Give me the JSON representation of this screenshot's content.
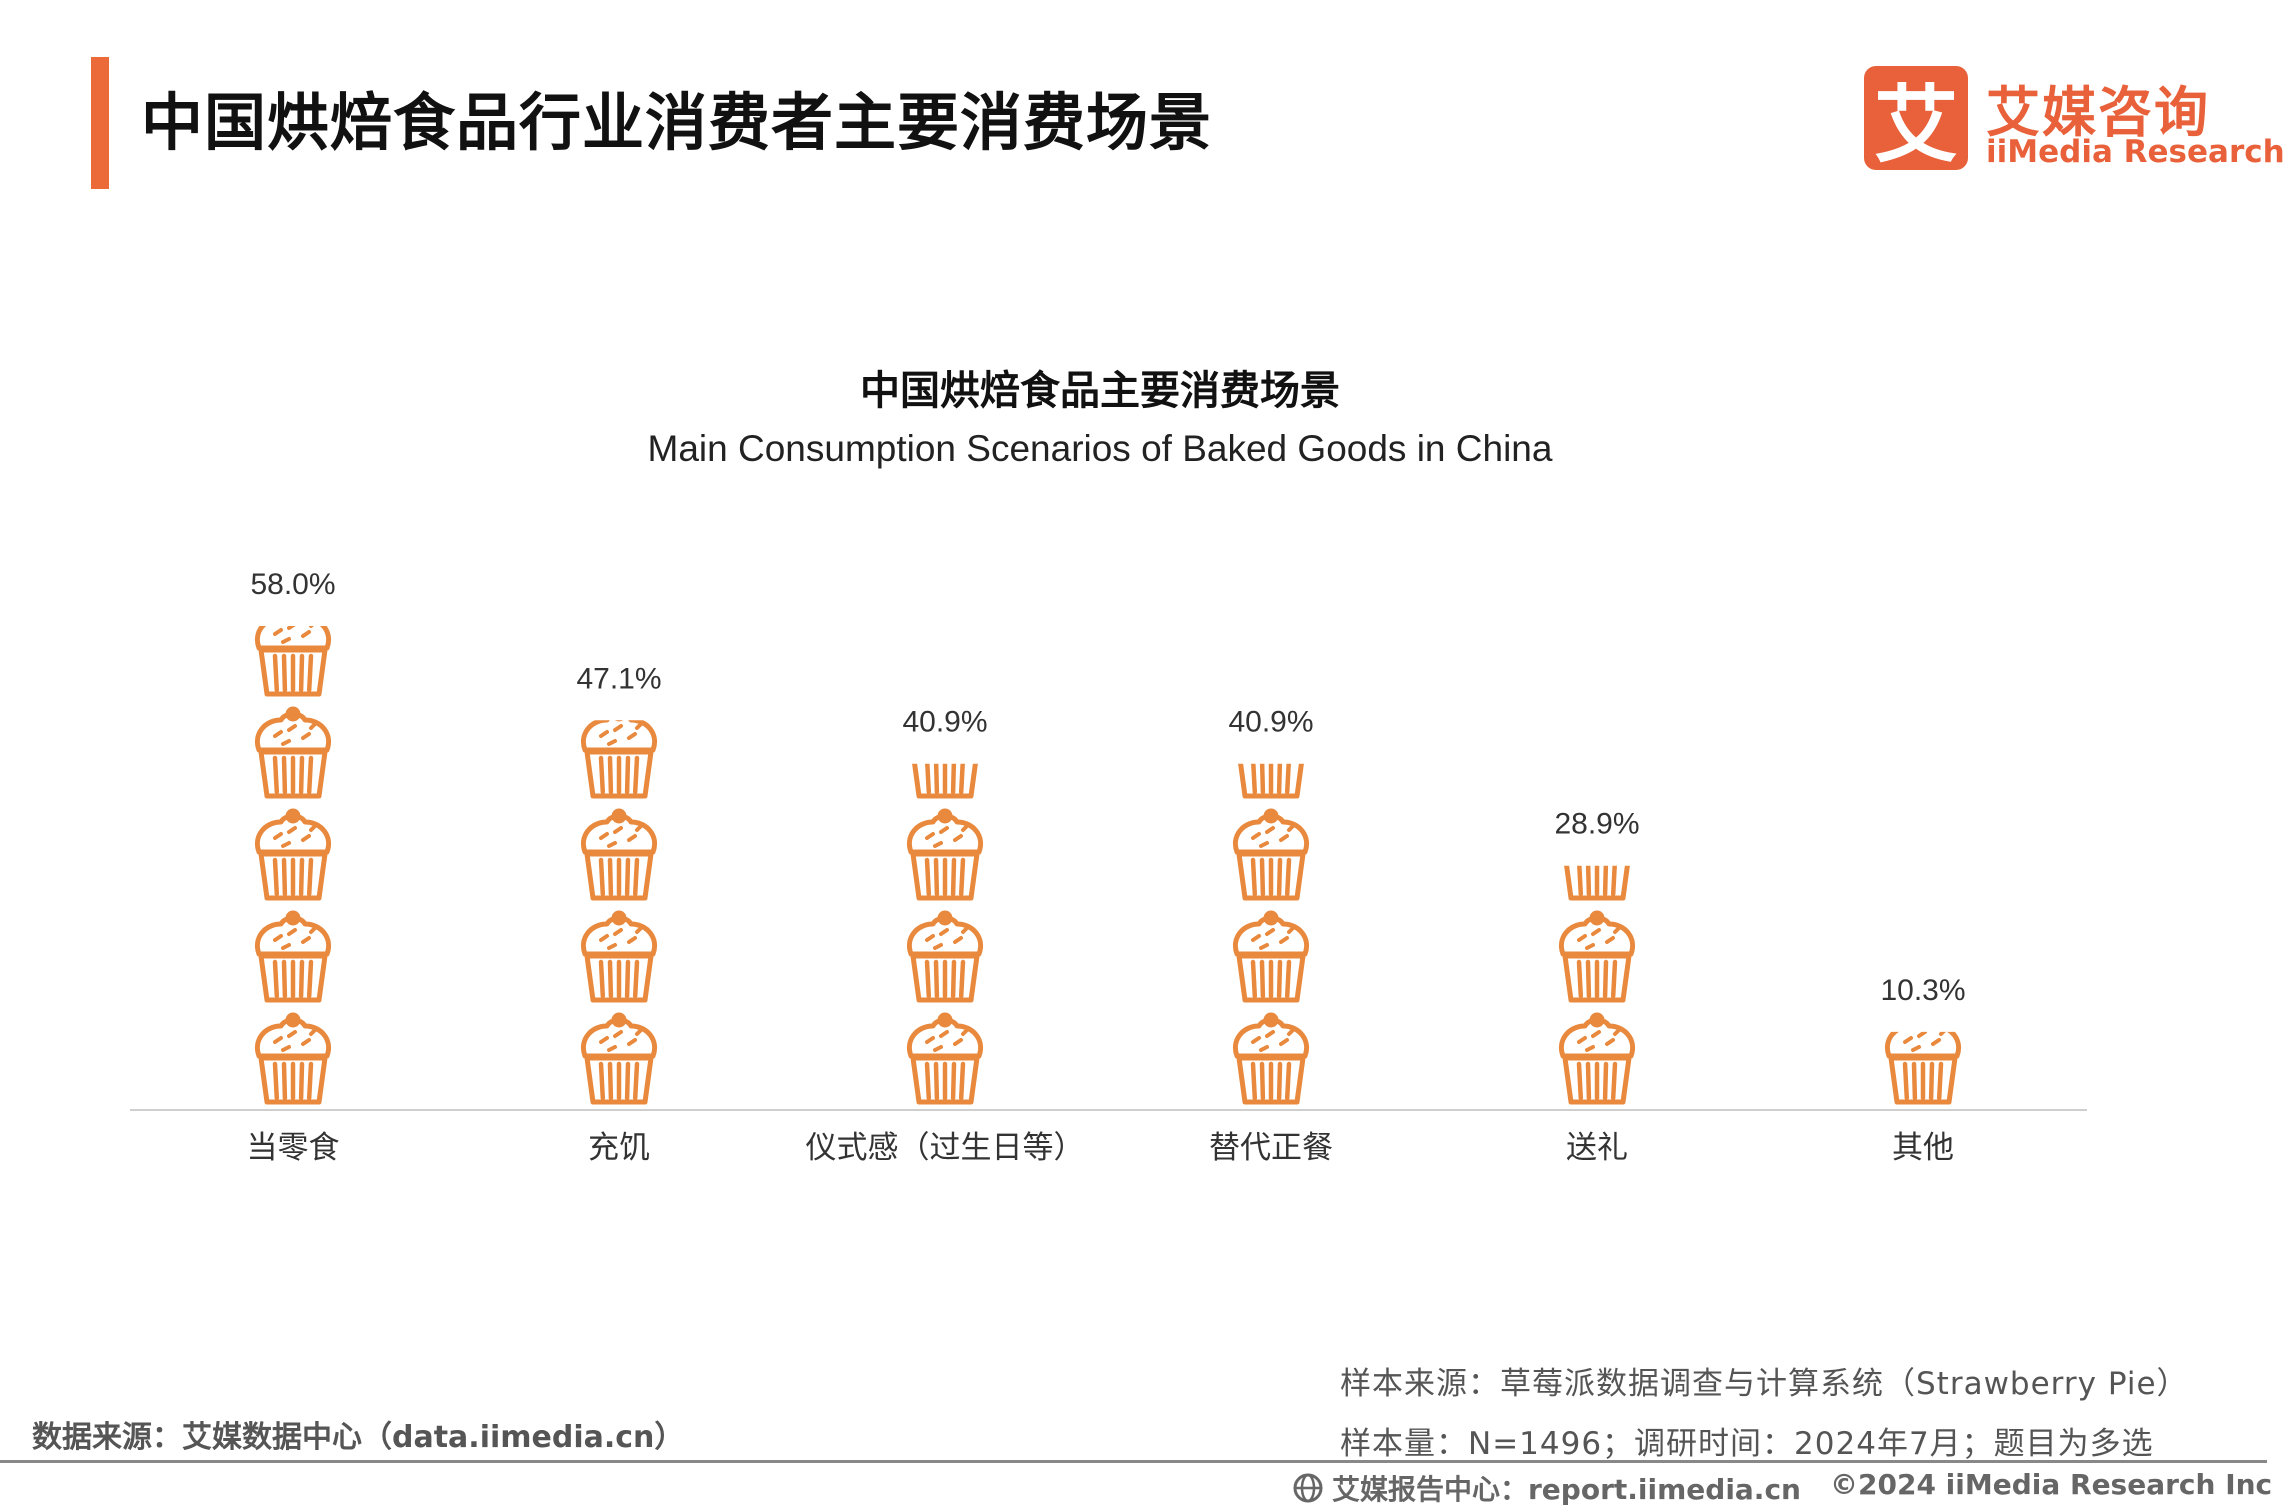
{
  "header": {
    "title": "中国烘焙食品行业消费者主要消费场景",
    "logo_glyph": "艾",
    "logo_cn": "艾媒咨询",
    "logo_en": "iiMedia Research",
    "accent_color": "#ec6a3a"
  },
  "chart_data": {
    "type": "bar",
    "title": "中国烘焙食品主要消费场景",
    "subtitle": "Main Consumption Scenarios of Baked Goods in China",
    "categories": [
      "当零食",
      "充饥",
      "仪式感（过生日等）",
      "替代正餐",
      "送礼",
      "其他"
    ],
    "values": [
      58.0,
      47.1,
      40.9,
      40.9,
      28.9,
      10.3
    ],
    "value_labels": [
      "58.0%",
      "47.1%",
      "40.9%",
      "40.9%",
      "28.9%",
      "10.3%"
    ],
    "unit": "%",
    "ylim": [
      0,
      60
    ],
    "icon": "muffin-icon",
    "icon_color": "#e8893e",
    "grid": false,
    "legend": "none"
  },
  "footer": {
    "source": "数据来源：艾媒数据中心（data.iimedia.cn）",
    "sample_source": "样本来源：草莓派数据调查与计算系统（Strawberry Pie）",
    "sample_info": "样本量：N=1496；调研时间：2024年7月；题目为多选",
    "report_center": "艾媒报告中心：report.iimedia.cn",
    "copyright": "©2024 iiMedia Research  Inc"
  }
}
